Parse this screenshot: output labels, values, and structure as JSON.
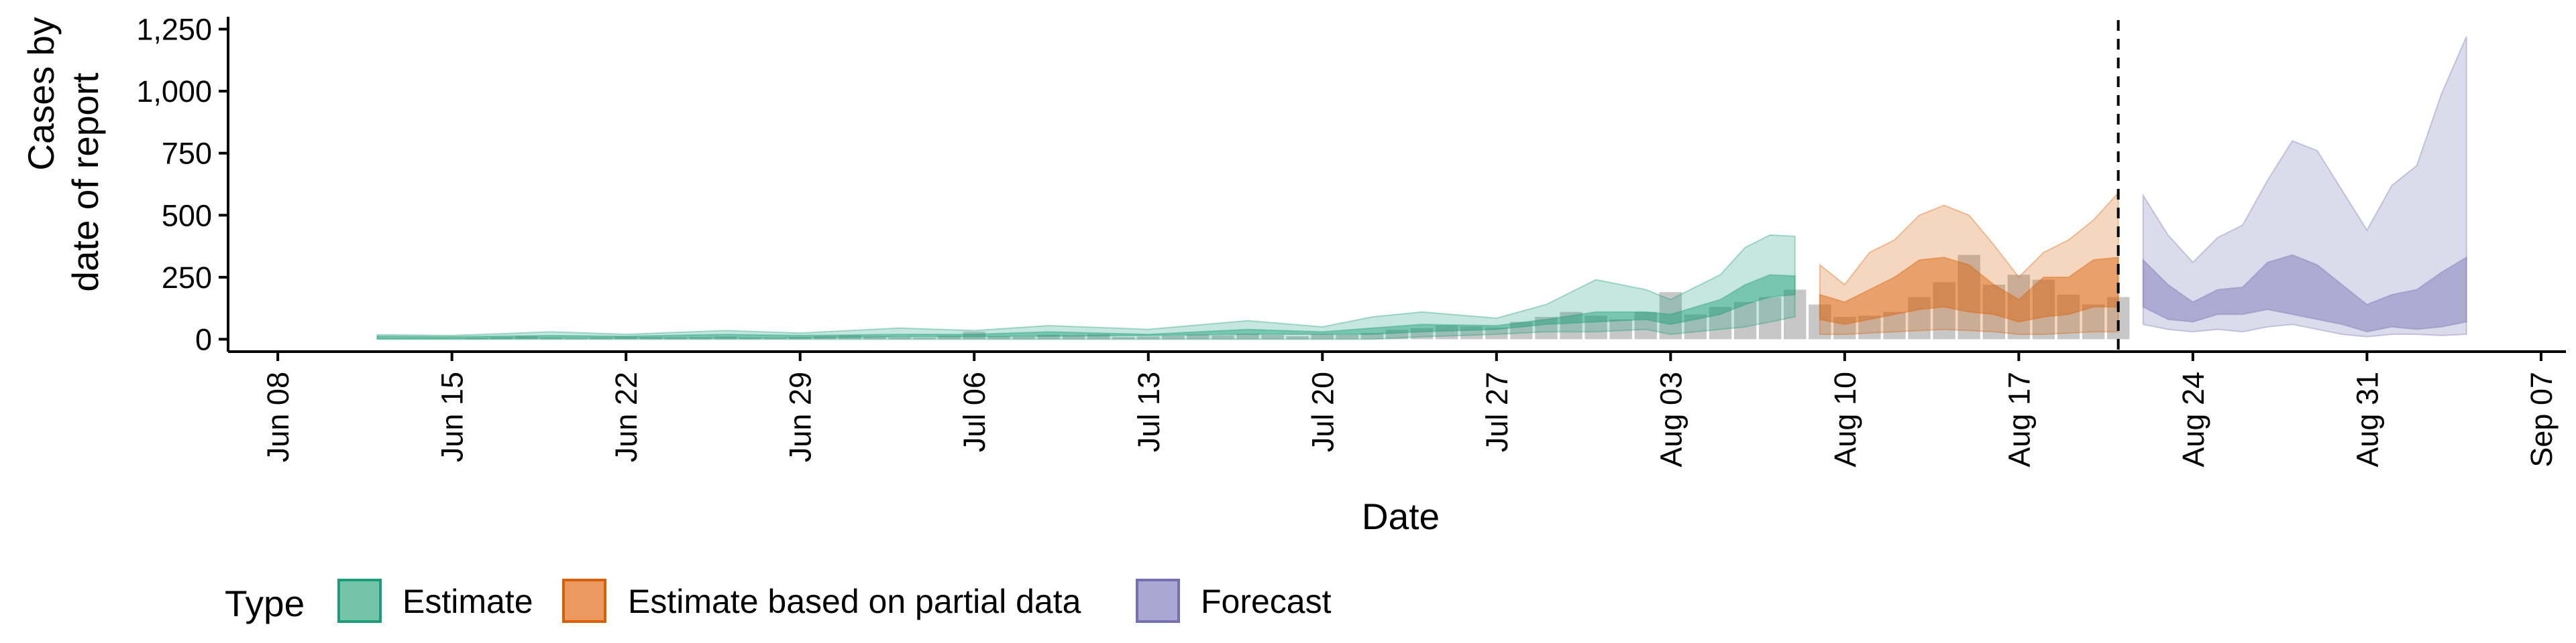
{
  "chart_data": {
    "type": "area",
    "xlabel": "Date",
    "ylabel_lines": [
      "Cases by",
      "date of report"
    ],
    "xlim": [
      "2020-06-06",
      "2020-09-08"
    ],
    "ylim": [
      -50,
      1300
    ],
    "y_ticks": [
      0,
      250,
      500,
      750,
      1000,
      1250
    ],
    "y_tick_labels": [
      "0",
      "250",
      "500",
      "750",
      "1,000",
      "1,250"
    ],
    "x_ticks": [
      "2020-06-08",
      "2020-06-15",
      "2020-06-22",
      "2020-06-29",
      "2020-07-06",
      "2020-07-13",
      "2020-07-20",
      "2020-07-27",
      "2020-08-03",
      "2020-08-10",
      "2020-08-17",
      "2020-08-24",
      "2020-08-31",
      "2020-09-07"
    ],
    "x_tick_labels": [
      "Jun 08",
      "Jun 15",
      "Jun 22",
      "Jun 29",
      "Jul 06",
      "Jul 13",
      "Jul 20",
      "Jul 27",
      "Aug 03",
      "Aug 10",
      "Aug 17",
      "Aug 24",
      "Aug 31",
      "Sep 07"
    ],
    "vline": "2020-08-21",
    "grid": false,
    "legend": {
      "title": "Type",
      "position": "bottom",
      "entries": [
        "Estimate",
        "Estimate based on partial data",
        "Forecast"
      ]
    },
    "colors": {
      "Estimate": "#1b9e77",
      "Estimate based on partial data": "#d95f02",
      "Forecast": "#7570b3",
      "observed": "#bdbdbd"
    },
    "observed": {
      "dates": [
        "2020-06-16",
        "2020-06-17",
        "2020-06-18",
        "2020-06-19",
        "2020-06-20",
        "2020-06-21",
        "2020-06-22",
        "2020-06-23",
        "2020-06-24",
        "2020-06-25",
        "2020-06-26",
        "2020-06-27",
        "2020-06-28",
        "2020-06-29",
        "2020-06-30",
        "2020-07-01",
        "2020-07-02",
        "2020-07-03",
        "2020-07-04",
        "2020-07-05",
        "2020-07-06",
        "2020-07-07",
        "2020-07-08",
        "2020-07-09",
        "2020-07-10",
        "2020-07-11",
        "2020-07-12",
        "2020-07-13",
        "2020-07-14",
        "2020-07-15",
        "2020-07-16",
        "2020-07-17",
        "2020-07-18",
        "2020-07-19",
        "2020-07-20",
        "2020-07-21",
        "2020-07-22",
        "2020-07-23",
        "2020-07-24",
        "2020-07-25",
        "2020-07-26",
        "2020-07-27",
        "2020-07-28",
        "2020-07-29",
        "2020-07-30",
        "2020-07-31",
        "2020-08-01",
        "2020-08-02",
        "2020-08-03",
        "2020-08-04",
        "2020-08-05",
        "2020-08-06",
        "2020-08-07",
        "2020-08-08",
        "2020-08-09",
        "2020-08-10",
        "2020-08-11",
        "2020-08-12",
        "2020-08-13",
        "2020-08-14",
        "2020-08-15",
        "2020-08-16",
        "2020-08-17",
        "2020-08-18",
        "2020-08-19",
        "2020-08-20",
        "2020-08-21"
      ],
      "values": [
        5,
        8,
        12,
        6,
        4,
        7,
        10,
        9,
        6,
        8,
        11,
        7,
        5,
        9,
        12,
        15,
        10,
        8,
        6,
        14,
        30,
        12,
        10,
        18,
        16,
        20,
        9,
        11,
        14,
        18,
        15,
        22,
        17,
        12,
        20,
        18,
        25,
        38,
        45,
        55,
        52,
        48,
        70,
        90,
        110,
        95,
        80,
        110,
        190,
        100,
        130,
        150,
        170,
        200,
        140,
        90,
        95,
        110,
        170,
        230,
        340,
        220,
        260,
        240,
        180,
        140,
        170
      ]
    },
    "series": [
      {
        "name": "Estimate",
        "dates": [
          "2020-06-12",
          "2020-06-15",
          "2020-06-19",
          "2020-06-22",
          "2020-06-26",
          "2020-06-29",
          "2020-07-03",
          "2020-07-06",
          "2020-07-09",
          "2020-07-13",
          "2020-07-17",
          "2020-07-20",
          "2020-07-22",
          "2020-07-24",
          "2020-07-27",
          "2020-07-29",
          "2020-07-31",
          "2020-08-02",
          "2020-08-03",
          "2020-08-05",
          "2020-08-06",
          "2020-08-07",
          "2020-08-08"
        ],
        "lo90": [
          0,
          0,
          0,
          0,
          0,
          0,
          0,
          0,
          0,
          0,
          0,
          0,
          0,
          10,
          20,
          30,
          30,
          40,
          20,
          40,
          50,
          70,
          90
        ],
        "lo50": [
          2,
          2,
          5,
          5,
          5,
          5,
          10,
          10,
          12,
          15,
          20,
          20,
          20,
          30,
          40,
          60,
          70,
          80,
          60,
          100,
          140,
          170,
          180
        ],
        "hi50": [
          12,
          10,
          15,
          12,
          20,
          15,
          20,
          20,
          30,
          20,
          40,
          30,
          45,
          60,
          55,
          80,
          110,
          110,
          100,
          160,
          220,
          260,
          255
        ],
        "hi90": [
          18,
          15,
          30,
          20,
          35,
          25,
          45,
          35,
          55,
          40,
          75,
          50,
          90,
          110,
          85,
          140,
          240,
          200,
          160,
          260,
          370,
          420,
          415
        ]
      },
      {
        "name": "Estimate based on partial data",
        "dates": [
          "2020-08-09",
          "2020-08-10",
          "2020-08-11",
          "2020-08-12",
          "2020-08-13",
          "2020-08-14",
          "2020-08-15",
          "2020-08-16",
          "2020-08-17",
          "2020-08-18",
          "2020-08-19",
          "2020-08-20",
          "2020-08-21"
        ],
        "lo90": [
          20,
          20,
          25,
          30,
          35,
          40,
          35,
          30,
          20,
          20,
          25,
          30,
          30
        ],
        "lo50": [
          80,
          60,
          80,
          100,
          120,
          130,
          110,
          100,
          70,
          90,
          100,
          130,
          130
        ],
        "hi50": [
          180,
          150,
          200,
          250,
          320,
          330,
          300,
          220,
          160,
          250,
          250,
          320,
          330
        ],
        "hi90": [
          300,
          220,
          350,
          400,
          500,
          540,
          500,
          380,
          250,
          350,
          400,
          480,
          590
        ]
      },
      {
        "name": "Forecast",
        "dates": [
          "2020-08-22",
          "2020-08-23",
          "2020-08-24",
          "2020-08-25",
          "2020-08-26",
          "2020-08-27",
          "2020-08-28",
          "2020-08-29",
          "2020-08-30",
          "2020-08-31",
          "2020-09-01",
          "2020-09-02",
          "2020-09-03",
          "2020-09-04"
        ],
        "lo90": [
          60,
          40,
          30,
          40,
          30,
          50,
          60,
          40,
          20,
          10,
          20,
          20,
          15,
          20
        ],
        "lo50": [
          130,
          80,
          70,
          100,
          100,
          120,
          100,
          80,
          60,
          30,
          50,
          40,
          50,
          70
        ],
        "hi50": [
          320,
          220,
          150,
          200,
          210,
          310,
          340,
          300,
          220,
          140,
          180,
          200,
          270,
          330
        ],
        "hi90": [
          580,
          420,
          310,
          410,
          460,
          640,
          800,
          760,
          600,
          440,
          620,
          700,
          990,
          1220
        ]
      }
    ]
  }
}
